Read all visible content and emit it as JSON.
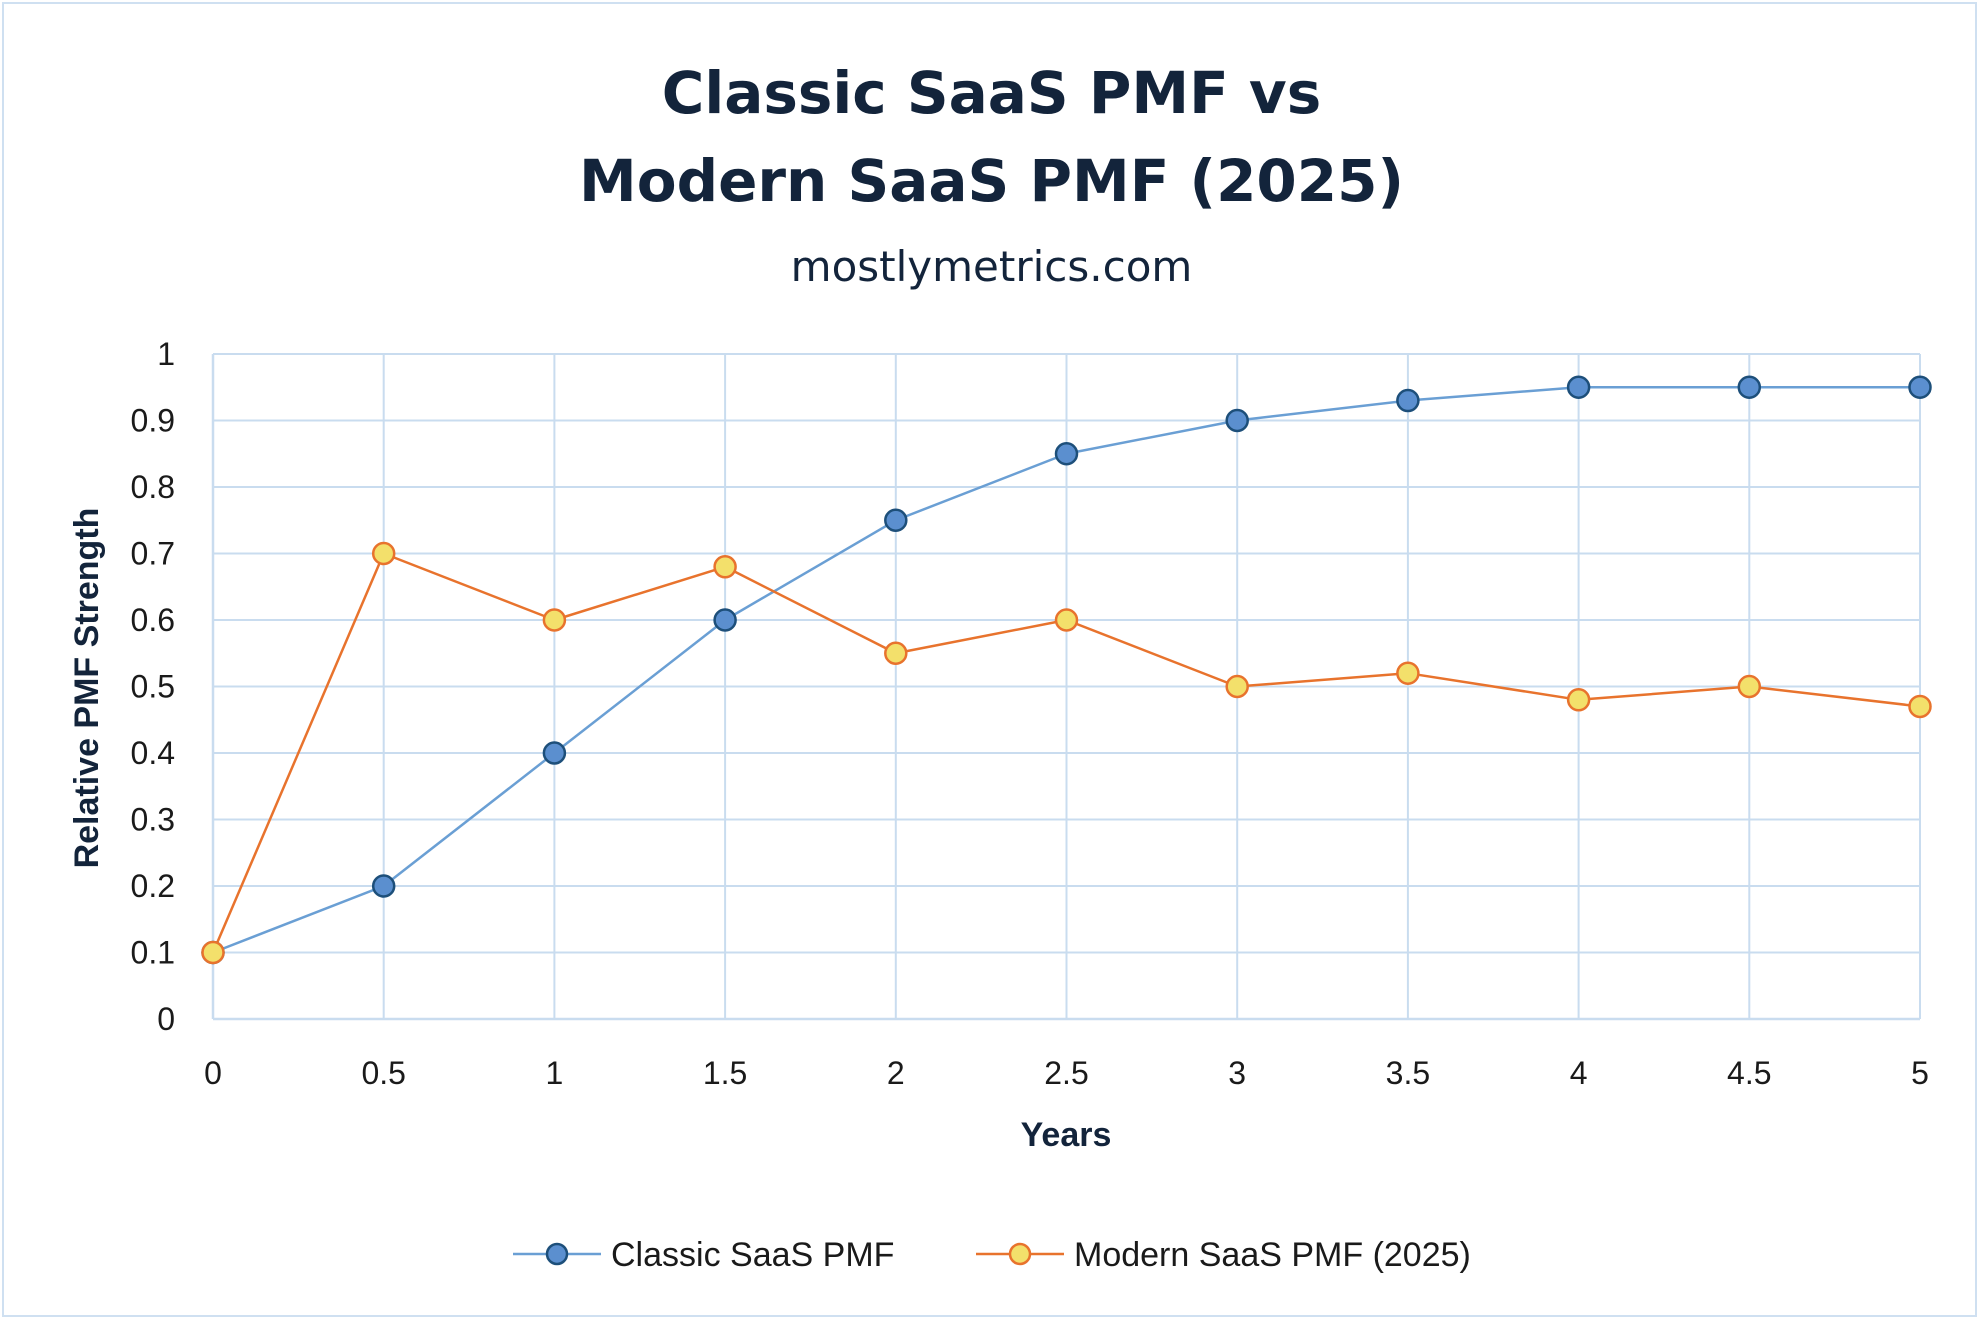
{
  "chart": {
    "title_line1": "Classic SaaS PMF vs",
    "title_line2": "Modern SaaS PMF (2025)",
    "subtitle": "mostlymetrics.com"
  },
  "colors": {
    "classic_line": "#6a9fd4",
    "classic_marker_fill": "#5b8fcf",
    "classic_marker_stroke": "#1d4f7a",
    "modern_line": "#e8732d",
    "modern_marker_fill": "#f3e06b",
    "modern_marker_stroke": "#e8732d",
    "grid": "#c9dcef",
    "text_dark": "#13243b"
  },
  "chart_data": {
    "type": "line",
    "title": "Classic SaaS PMF vs Modern SaaS PMF (2025)",
    "subtitle": "mostlymetrics.com",
    "xlabel": "Years",
    "ylabel": "Relative PMF Strength",
    "x": [
      0,
      0.5,
      1,
      1.5,
      2,
      2.5,
      3,
      3.5,
      4,
      4.5,
      5
    ],
    "xlim": [
      0,
      5
    ],
    "ylim": [
      0,
      1
    ],
    "x_ticks": [
      "0",
      "0.5",
      "1",
      "1.5",
      "2",
      "2.5",
      "3",
      "3.5",
      "4",
      "4.5",
      "5"
    ],
    "y_ticks": [
      "0",
      "0.1",
      "0.2",
      "0.3",
      "0.4",
      "0.5",
      "0.6",
      "0.7",
      "0.8",
      "0.9",
      "1"
    ],
    "grid": true,
    "legend_position": "bottom",
    "series": [
      {
        "name": "Classic SaaS PMF",
        "values": [
          0.1,
          0.2,
          0.4,
          0.6,
          0.75,
          0.85,
          0.9,
          0.93,
          0.95,
          0.95,
          0.95
        ]
      },
      {
        "name": "Modern SaaS PMF (2025)",
        "values": [
          0.1,
          0.7,
          0.6,
          0.68,
          0.55,
          0.6,
          0.5,
          0.52,
          0.48,
          0.5,
          0.47
        ]
      }
    ]
  }
}
